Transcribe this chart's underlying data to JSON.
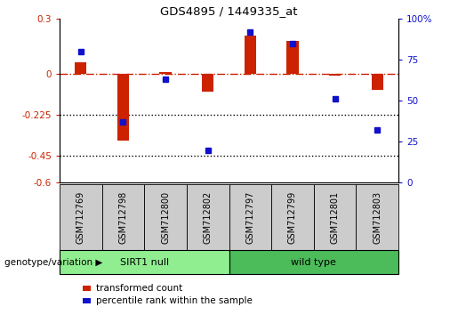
{
  "title": "GDS4895 / 1449335_at",
  "samples": [
    "GSM712769",
    "GSM712798",
    "GSM712800",
    "GSM712802",
    "GSM712797",
    "GSM712799",
    "GSM712801",
    "GSM712803"
  ],
  "transformed_counts": [
    0.06,
    -0.37,
    0.01,
    -0.1,
    0.21,
    0.18,
    -0.01,
    -0.09
  ],
  "percentile_ranks": [
    80,
    37,
    63,
    20,
    92,
    85,
    51,
    32
  ],
  "ylim_left": [
    -0.6,
    0.3
  ],
  "ylim_right": [
    0,
    100
  ],
  "yticks_left": [
    0.3,
    0,
    -0.225,
    -0.45,
    -0.6
  ],
  "yticks_right": [
    100,
    75,
    50,
    25,
    0
  ],
  "hlines_dotted": [
    -0.225,
    -0.45
  ],
  "red_bar_color": "#CC2200",
  "blue_dot_color": "#1111CC",
  "hline_color": "#CC2200",
  "dotted_color": "#000000",
  "bg_color": "#FFFFFF",
  "group_label": "genotype/variation",
  "group1_label": "SIRT1 null",
  "group1_color": "#90EE90",
  "group2_label": "wild type",
  "group2_color": "#4CBB5A",
  "sample_box_color": "#CCCCCC",
  "legend_items": [
    {
      "color": "#CC2200",
      "label": "transformed count"
    },
    {
      "color": "#1111CC",
      "label": "percentile rank within the sample"
    }
  ]
}
